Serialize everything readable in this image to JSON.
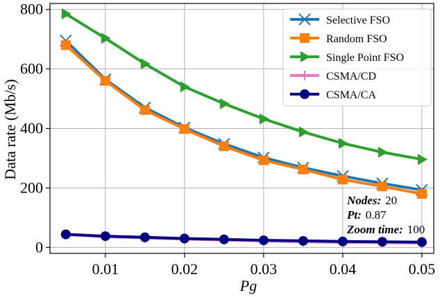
{
  "chart_data": {
    "type": "line",
    "xlabel": "Pg",
    "ylabel": "Data rate (Mb/s)",
    "xlim": [
      0.003,
      0.0515
    ],
    "ylim": [
      -20,
      820
    ],
    "xticks": [
      0.01,
      0.02,
      0.03,
      0.04,
      0.05
    ],
    "xtick_labels": [
      "0.01",
      "0.02",
      "0.03",
      "0.04",
      "0.05"
    ],
    "yticks": [
      0,
      200,
      400,
      600,
      800
    ],
    "ytick_labels": [
      "0",
      "200",
      "400",
      "600",
      "800"
    ],
    "grid": true,
    "legend_position": "top-right",
    "x": [
      0.005,
      0.01,
      0.015,
      0.02,
      0.025,
      0.03,
      0.035,
      0.04,
      0.045,
      0.05
    ],
    "series": [
      {
        "name": "Selective FSO",
        "color": "#1f77b4",
        "marker": "x",
        "values": [
          695,
          565,
          470,
          403,
          348,
          302,
          268,
          240,
          215,
          193
        ]
      },
      {
        "name": "Random FSO",
        "color": "#ff7f0e",
        "marker": "square",
        "values": [
          680,
          560,
          462,
          398,
          340,
          293,
          262,
          228,
          205,
          180
        ]
      },
      {
        "name": "Single Point FSO",
        "color": "#2ca02c",
        "marker": "triangle-right",
        "values": [
          785,
          703,
          617,
          540,
          483,
          432,
          388,
          350,
          320,
          296
        ]
      },
      {
        "name": "CSMA/CD",
        "color": "#e377c2",
        "marker": "plus",
        "values": [
          43,
          36,
          32,
          28,
          25,
          22,
          19,
          17,
          16,
          15
        ]
      },
      {
        "name": "CSMA/CA",
        "color": "#000080",
        "marker": "circle",
        "values": [
          44,
          38,
          34,
          30,
          27,
          24,
          22,
          20,
          19,
          18
        ]
      }
    ],
    "annotations": [
      {
        "key": "Nodes:",
        "value": "20"
      },
      {
        "key": "Pt:",
        "value": "0.87"
      },
      {
        "key": "Zoom time:",
        "value": "100"
      }
    ]
  }
}
